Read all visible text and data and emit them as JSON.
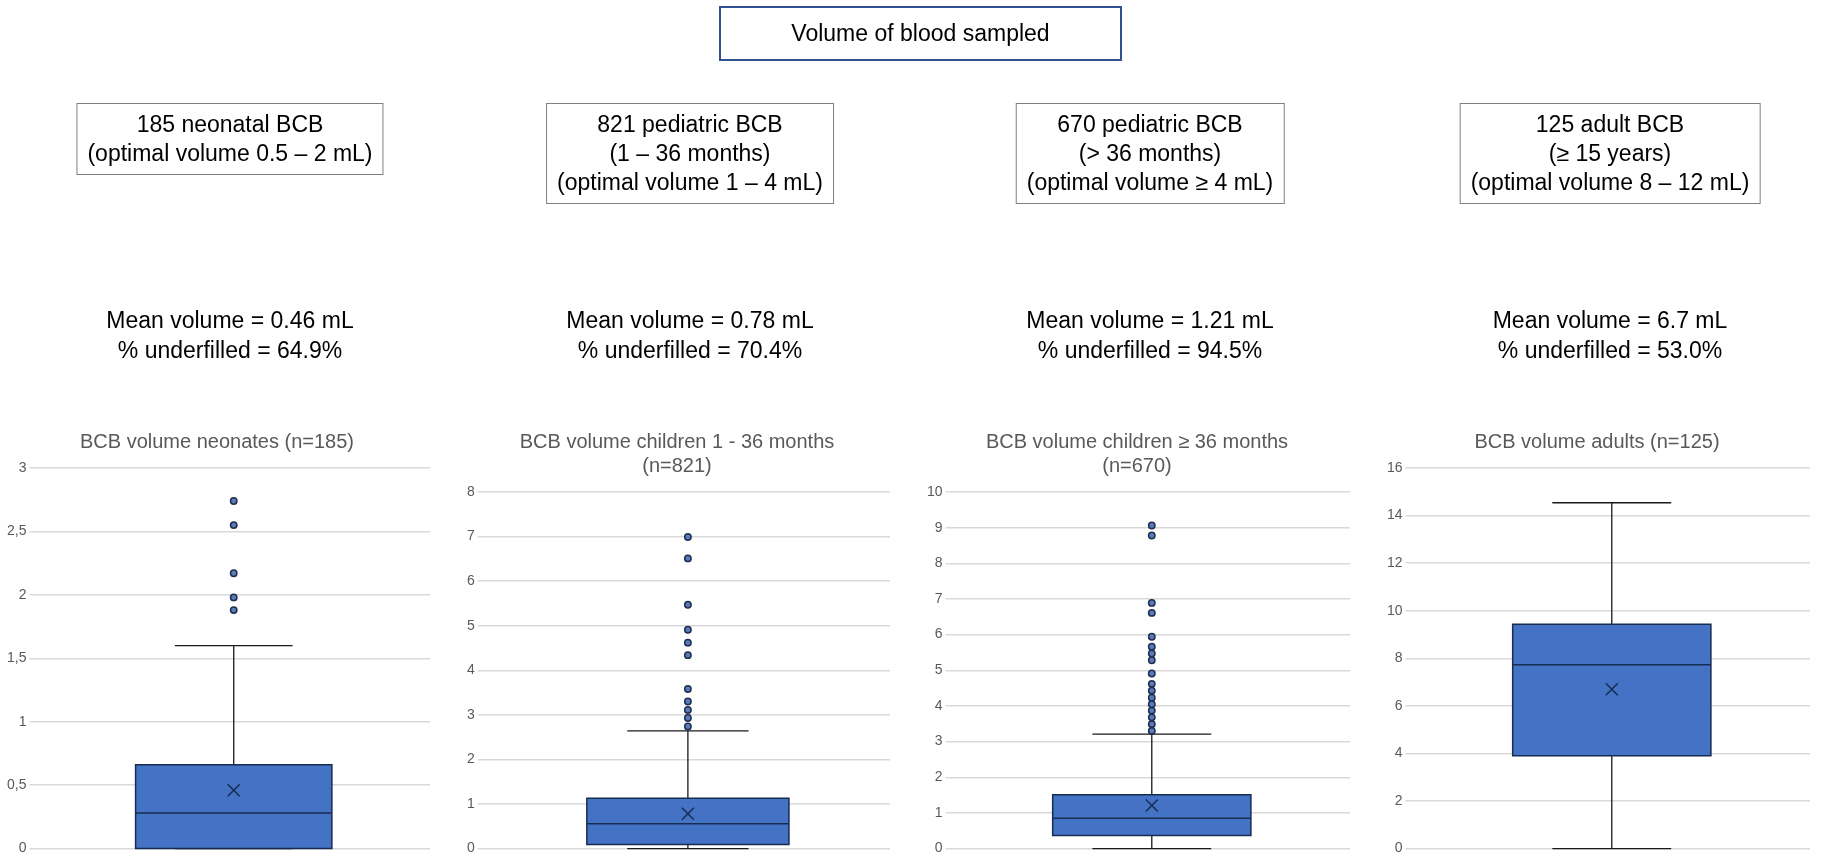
{
  "chart_data": [
    {
      "type": "other",
      "title": "Volume of blood sampled"
    },
    {
      "type": "box",
      "title": "BCB volume neonates (n=185)",
      "annotations": [
        "185 neonatal BCB\n(optimal volume 0.5 – 2 mL)",
        "Mean volume = 0.46 mL\n% underfilled = 64.9%"
      ],
      "categories": [
        null
      ],
      "color": "#4472c4",
      "ylim": [
        0,
        3
      ],
      "yticks": [
        0,
        {
          "value": 0.5,
          "label": "0,5"
        },
        1,
        {
          "value": 1.5,
          "label": "1,5"
        },
        2,
        {
          "value": 2.5,
          "label": "2,5"
        },
        3
      ],
      "grid": "y",
      "tick_labels": "y",
      "boxes": [
        {
          "low": 0,
          "q1": 0,
          "median": 0.28,
          "q3": 0.66,
          "high": 1.6,
          "mean": 0.46,
          "outliers": [
            1.88,
            1.98,
            2.17,
            2.55,
            2.74
          ]
        }
      ]
    },
    {
      "type": "box",
      "title": "BCB volume children 1 - 36 months\n(n=821)",
      "annotations": [
        "821 pediatric BCB\n(1 – 36 months)\n(optimal volume 1 – 4 mL)",
        "Mean volume = 0.78 mL\n% underfilled = 70.4%"
      ],
      "categories": [
        null
      ],
      "color": "#4472c4",
      "ylim": [
        0,
        8
      ],
      "yticks": [
        0,
        1,
        2,
        3,
        4,
        5,
        6,
        7,
        8
      ],
      "grid": "y",
      "tick_labels": "y",
      "boxes": [
        {
          "low": 0,
          "q1": 0.09,
          "median": 0.56,
          "q3": 1.13,
          "high": 2.64,
          "mean": 0.78,
          "outliers": [
            2.74,
            2.93,
            3.11,
            3.3,
            3.58,
            4.34,
            4.62,
            4.91,
            5.47,
            6.51,
            6.99
          ]
        }
      ]
    },
    {
      "type": "box",
      "title": "BCB volume children ≥ 36 months\n(n=670)",
      "annotations": [
        "670 pediatric BCB\n(> 36 months)\n(optimal volume ≥ 4 mL)",
        "Mean volume = 1.21 mL\n% underfilled = 94.5%"
      ],
      "categories": [
        null
      ],
      "color": "#4472c4",
      "ylim": [
        0,
        10
      ],
      "yticks": [
        0,
        1,
        2,
        3,
        4,
        5,
        6,
        7,
        8,
        9,
        10
      ],
      "grid": "y",
      "tick_labels": "y",
      "boxes": [
        {
          "low": 0,
          "q1": 0.37,
          "median": 0.85,
          "q3": 1.51,
          "high": 3.21,
          "mean": 1.21,
          "outliers": [
            3.3,
            3.49,
            3.68,
            3.87,
            4.05,
            4.23,
            4.43,
            4.62,
            4.91,
            5.28,
            5.47,
            5.66,
            5.94,
            6.61,
            6.89,
            8.78,
            9.06
          ]
        }
      ]
    },
    {
      "type": "box",
      "title": "BCB volume adults (n=125)",
      "annotations": [
        "125 adult BCB\n(≥ 15 years)\n(optimal volume 8 – 12 mL)",
        "Mean volume = 6.7 mL\n% underfilled = 53.0%"
      ],
      "categories": [
        null
      ],
      "color": "#4472c4",
      "ylim": [
        0,
        16
      ],
      "yticks": [
        0,
        2,
        4,
        6,
        8,
        10,
        12,
        14,
        16
      ],
      "grid": "y",
      "tick_labels": "y",
      "boxes": [
        {
          "low": 0,
          "q1": 3.9,
          "median": 7.73,
          "q3": 9.43,
          "high": 14.54,
          "mean": 6.7
        }
      ]
    }
  ]
}
